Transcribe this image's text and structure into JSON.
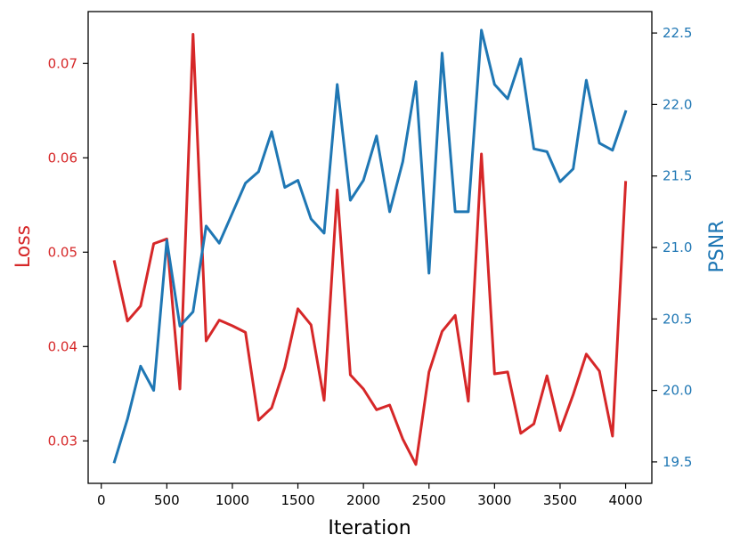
{
  "chart_data": {
    "type": "line",
    "xlabel": "Iteration",
    "ylabel_left": "Loss",
    "ylabel_right": "PSNR",
    "xlim": [
      -100,
      4200
    ],
    "ylim_left": [
      0.0255,
      0.0755
    ],
    "ylim_right": [
      19.35,
      22.65
    ],
    "grid": false,
    "x_ticks": [
      0,
      500,
      1000,
      1500,
      2000,
      2500,
      3000,
      3500,
      4000
    ],
    "left_ticks": [
      0.03,
      0.04,
      0.05,
      0.06,
      0.07
    ],
    "right_ticks": [
      19.5,
      20.0,
      20.5,
      21.0,
      21.5,
      22.0,
      22.5
    ],
    "x_tick_labels": [
      "0",
      "500",
      "1000",
      "1500",
      "2000",
      "2500",
      "3000",
      "3500",
      "4000"
    ],
    "left_tick_labels": [
      "0.03",
      "0.04",
      "0.05",
      "0.06",
      "0.07"
    ],
    "right_tick_labels": [
      "19.5",
      "20.0",
      "20.5",
      "21.0",
      "21.5",
      "22.0",
      "22.5"
    ],
    "x": [
      100,
      200,
      300,
      400,
      500,
      600,
      700,
      800,
      900,
      1000,
      1100,
      1200,
      1300,
      1400,
      1500,
      1600,
      1700,
      1800,
      1900,
      2000,
      2100,
      2200,
      2300,
      2400,
      2500,
      2600,
      2700,
      2800,
      2900,
      3000,
      3100,
      3200,
      3300,
      3400,
      3500,
      3600,
      3700,
      3800,
      3900,
      4000
    ],
    "series": [
      {
        "axis": "left",
        "color": "#d62728",
        "values": [
          0.049,
          0.0427,
          0.0443,
          0.0509,
          0.0514,
          0.0355,
          0.0731,
          0.0406,
          0.0428,
          0.0422,
          0.0415,
          0.0322,
          0.0335,
          0.0378,
          0.044,
          0.0423,
          0.0343,
          0.0566,
          0.037,
          0.0355,
          0.0333,
          0.0338,
          0.0302,
          0.0275,
          0.0373,
          0.0416,
          0.0433,
          0.0342,
          0.0604,
          0.0371,
          0.0373,
          0.0308,
          0.0318,
          0.0369,
          0.0311,
          0.0349,
          0.0392,
          0.0374,
          0.0305,
          0.0574
        ]
      },
      {
        "axis": "right",
        "color": "#1f77b4",
        "values": [
          19.5,
          19.8,
          20.17,
          20.0,
          21.05,
          20.45,
          20.55,
          21.15,
          21.03,
          21.24,
          21.45,
          21.53,
          21.81,
          21.42,
          21.47,
          21.2,
          21.1,
          22.14,
          21.33,
          21.47,
          21.78,
          21.25,
          21.6,
          22.16,
          20.82,
          22.36,
          21.25,
          21.25,
          22.52,
          22.14,
          22.04,
          22.32,
          21.69,
          21.67,
          21.46,
          21.55,
          22.17,
          21.73,
          21.68,
          21.95
        ]
      }
    ]
  }
}
